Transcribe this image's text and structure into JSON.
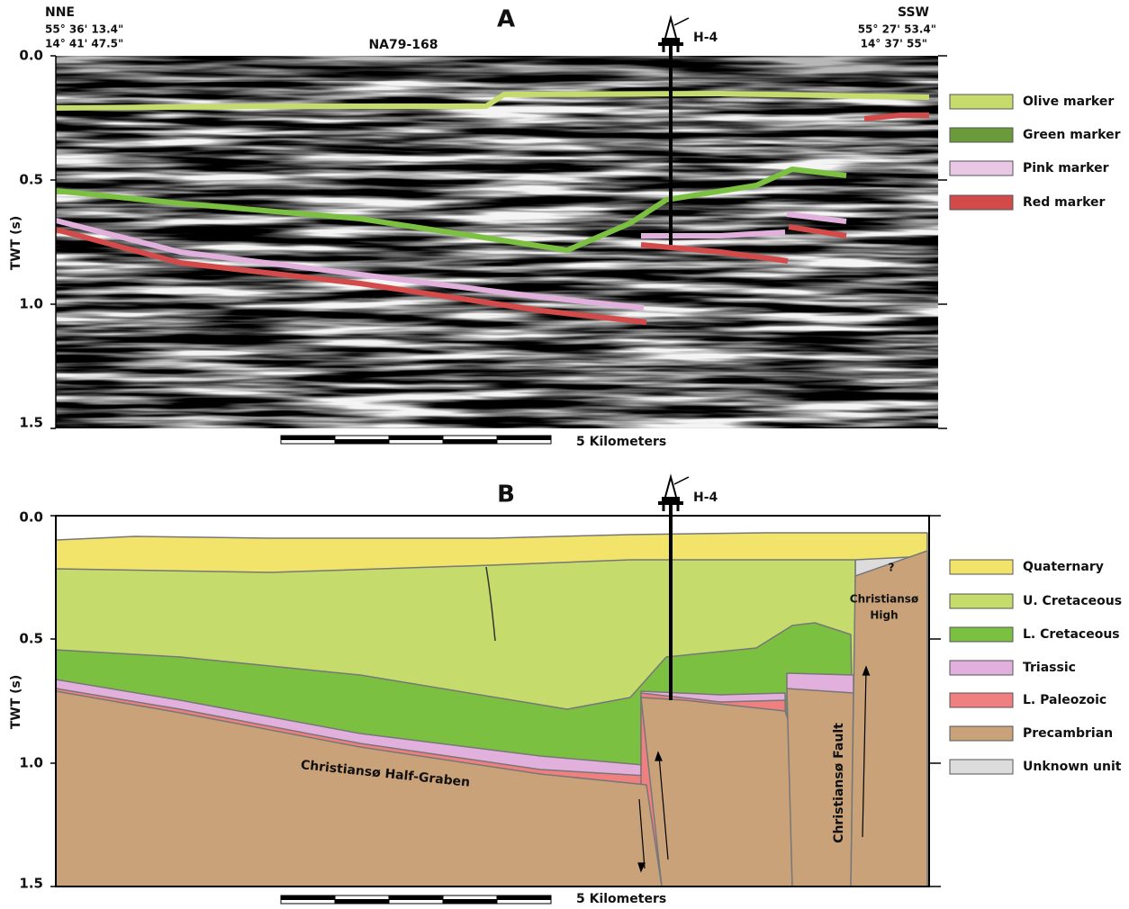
{
  "panel_a": {
    "label": "A",
    "left_direction": "NNE",
    "left_coords": [
      "55° 36' 13.4\"",
      "14° 41' 47.5\""
    ],
    "right_direction": "SSW",
    "right_coords": [
      "55° 27' 53.4\"",
      "14° 37' 55\""
    ],
    "line_name": "NA79-168",
    "well": "H-4",
    "y_axis_title": "TWT (s)",
    "y_ticks": [
      "0.0",
      "0.5",
      "1.0",
      "1.5"
    ],
    "scale_bar": "5 Kilometers",
    "legend": [
      "Olive marker",
      "Green marker",
      "Pink marker",
      "Red marker"
    ]
  },
  "panel_b": {
    "label": "B",
    "well": "H-4",
    "y_axis_title": "TWT (s)",
    "y_ticks": [
      "0.0",
      "0.5",
      "1.0",
      "1.5"
    ],
    "scale_bar": "5 Kilometers",
    "legend": [
      "Quaternary",
      "U. Cretaceous",
      "L. Cretaceous",
      "Triassic",
      "L. Paleozoic",
      "Precambrian",
      "Unknown unit"
    ],
    "annotations": {
      "half_graben": "Christiansø Half-Graben",
      "fault": "Christiansø Fault",
      "high": [
        "Christiansø",
        "High"
      ],
      "unknown": "?"
    }
  }
}
